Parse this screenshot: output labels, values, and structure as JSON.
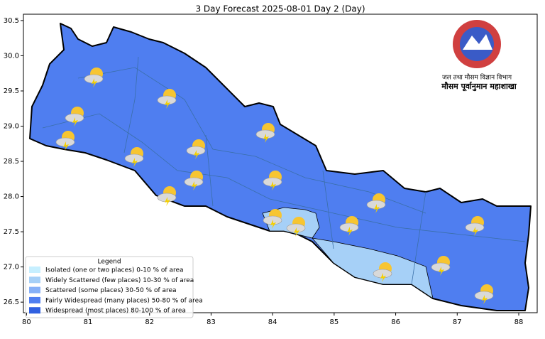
{
  "title": "3 Day Forecast 2025-08-01 Day 2 (Day)",
  "map": {
    "xlim": [
      79.95,
      88.3
    ],
    "ylim": [
      26.35,
      30.59
    ],
    "xticks": [
      80,
      81,
      82,
      83,
      84,
      85,
      86,
      87,
      88
    ],
    "yticks": [
      26.5,
      {
        "value": 27,
        "label": "27.0"
      },
      27.5,
      {
        "value": 28,
        "label": "28.0"
      },
      28.5,
      {
        "value": 29,
        "label": "29.0"
      },
      29.5,
      {
        "value": 30,
        "label": "30.0"
      },
      30.5
    ]
  },
  "legend": {
    "title": "Legend",
    "items": [
      {
        "label": "Isolated (one or two places)  0-10 % of area",
        "color": "#c6efff"
      },
      {
        "label": "Widely Scattered (few places) 10-30 % of area",
        "color": "#a6d0f7"
      },
      {
        "label": "Scattered (some places) 30-50  % of area",
        "color": "#86b0f7"
      },
      {
        "label": "Fairly Widespread (many places) 50-80 % of area",
        "color": "#4f7ef0"
      },
      {
        "label": "Widespread (most places) 80-100 % of area",
        "color": "#3060e0"
      }
    ]
  },
  "logo": {
    "line1": "जल तथा मौसम विज्ञान विभाग",
    "line2": "मौसम पूर्वानुमान महाशाखा"
  }
}
